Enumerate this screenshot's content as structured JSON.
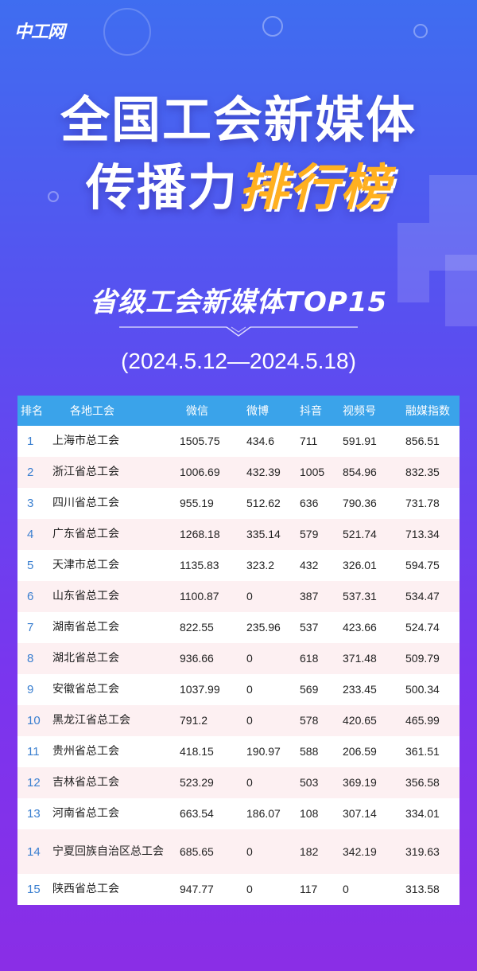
{
  "logo": "中工网",
  "title": {
    "line1": "全国工会新媒体",
    "line2_plain": "传播力",
    "line2_highlight": "排行榜"
  },
  "subtitle": "省级工会新媒体TOP15",
  "date_range": "(2024.5.12—2024.5.18)",
  "colors": {
    "header": "#3aa3ea",
    "highlight": "#ffb020",
    "row_alt": "#fdf0f2"
  },
  "table": {
    "headers": [
      "排名",
      "各地工会",
      "微信",
      "微博",
      "抖音",
      "视频号",
      "融媒指数"
    ],
    "rows": [
      [
        "1",
        "上海市总工会",
        "1505.75",
        "434.6",
        "711",
        "591.91",
        "856.51"
      ],
      [
        "2",
        "浙江省总工会",
        "1006.69",
        "432.39",
        "1005",
        "854.96",
        "832.35"
      ],
      [
        "3",
        "四川省总工会",
        "955.19",
        "512.62",
        "636",
        "790.36",
        "731.78"
      ],
      [
        "4",
        "广东省总工会",
        "1268.18",
        "335.14",
        "579",
        "521.74",
        "713.34"
      ],
      [
        "5",
        "天津市总工会",
        "1135.83",
        "323.2",
        "432",
        "326.01",
        "594.75"
      ],
      [
        "6",
        "山东省总工会",
        "1100.87",
        "0",
        "387",
        "537.31",
        "534.47"
      ],
      [
        "7",
        "湖南省总工会",
        "822.55",
        "235.96",
        "537",
        "423.66",
        "524.74"
      ],
      [
        "8",
        "湖北省总工会",
        "936.66",
        "0",
        "618",
        "371.48",
        "509.79"
      ],
      [
        "9",
        "安徽省总工会",
        "1037.99",
        "0",
        "569",
        "233.45",
        "500.34"
      ],
      [
        "10",
        "黑龙江省总工会",
        "791.2",
        "0",
        "578",
        "420.65",
        "465.99"
      ],
      [
        "11",
        "贵州省总工会",
        "418.15",
        "190.97",
        "588",
        "206.59",
        "361.51"
      ],
      [
        "12",
        "吉林省总工会",
        "523.29",
        "0",
        "503",
        "369.19",
        "356.58"
      ],
      [
        "13",
        "河南省总工会",
        "663.54",
        "186.07",
        "108",
        "307.14",
        "334.01"
      ],
      [
        "14",
        "宁夏回族自治区总工会",
        "685.65",
        "0",
        "182",
        "342.19",
        "319.63"
      ],
      [
        "15",
        "陕西省总工会",
        "947.77",
        "0",
        "117",
        "0",
        "313.58"
      ]
    ]
  }
}
